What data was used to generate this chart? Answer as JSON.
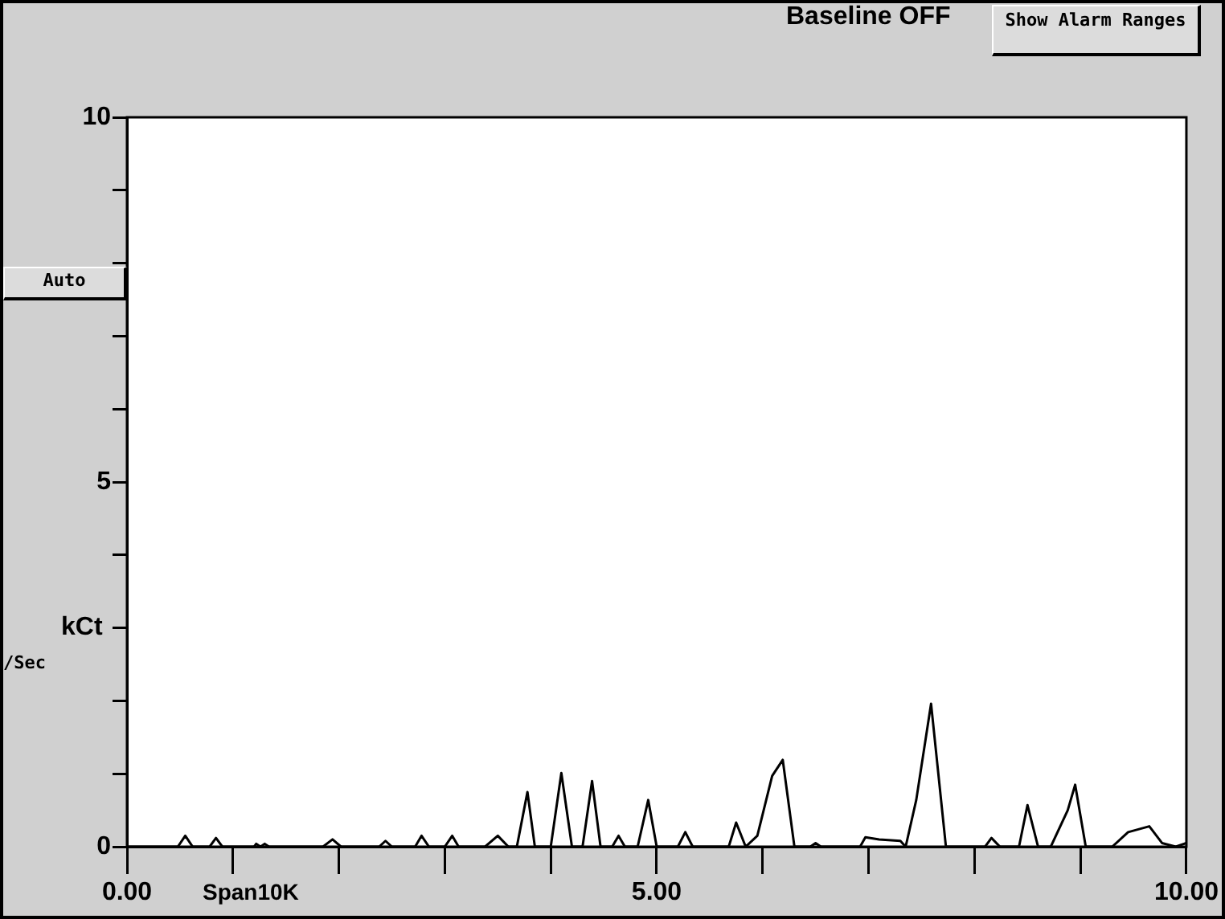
{
  "chart_data": {
    "type": "line",
    "ylabel": "kCt",
    "annotations": [
      "Baseline OFF",
      "Show Alarm Ranges",
      "Auto",
      "/Sec",
      "Span10K"
    ],
    "x": [
      0,
      0.48,
      0.55,
      0.62,
      0.78,
      0.84,
      0.9,
      1.2,
      1.22,
      1.26,
      1.3,
      1.34,
      1.85,
      1.94,
      2.02,
      2.38,
      2.44,
      2.5,
      2.72,
      2.78,
      2.85,
      3.0,
      3.07,
      3.13,
      3.38,
      3.5,
      3.6,
      3.68,
      3.78,
      3.85,
      4.0,
      4.1,
      4.2,
      4.3,
      4.39,
      4.47,
      4.58,
      4.64,
      4.7,
      4.82,
      4.92,
      5.0,
      5.2,
      5.27,
      5.34,
      5.68,
      5.75,
      5.84,
      5.95,
      6.09,
      6.19,
      6.3,
      6.45,
      6.5,
      6.55,
      6.92,
      6.97,
      7.1,
      7.3,
      7.35,
      7.45,
      7.59,
      7.73,
      8.1,
      8.16,
      8.24,
      8.42,
      8.5,
      8.6,
      8.72,
      8.88,
      8.95,
      9.05,
      9.3,
      9.45,
      9.65,
      9.77,
      9.9,
      10
    ],
    "series": [
      {
        "color": "#000000",
        "values": [
          0,
          0,
          0.15,
          0,
          0,
          0.12,
          0,
          0,
          0.04,
          0,
          0.04,
          0,
          0,
          0.1,
          0,
          0,
          0.08,
          0,
          0,
          0.15,
          0,
          0,
          0.15,
          0,
          0,
          0.15,
          0,
          0,
          0.75,
          0,
          0,
          1.01,
          0,
          0,
          0.9,
          0,
          0,
          0.15,
          0,
          0,
          0.64,
          0,
          0,
          0.2,
          0,
          0,
          0.33,
          0,
          0.15,
          0.97,
          1.19,
          0,
          0,
          0.05,
          0,
          0,
          0.13,
          0.1,
          0.08,
          0,
          0.64,
          1.96,
          0,
          0,
          0.12,
          0,
          0,
          0.57,
          0,
          0,
          0.5,
          0.85,
          0,
          0,
          0.2,
          0.28,
          0.05,
          0,
          0.05
        ]
      }
    ],
    "xlim": [
      0,
      10
    ],
    "xticks": [
      {
        "value": 0,
        "label": "0.00"
      },
      {
        "value": 1,
        "label": null
      },
      {
        "value": 2,
        "label": null
      },
      {
        "value": 3,
        "label": null
      },
      {
        "value": 4,
        "label": null
      },
      {
        "value": 5,
        "label": "5.00"
      },
      {
        "value": 6,
        "label": null
      },
      {
        "value": 7,
        "label": null
      },
      {
        "value": 8,
        "label": null
      },
      {
        "value": 9,
        "label": null
      },
      {
        "value": 10,
        "label": "10.00"
      }
    ],
    "ylim": [
      0,
      10
    ],
    "yticks": [
      0,
      {
        "value": 1,
        "label": null
      },
      {
        "value": 2,
        "label": null
      },
      {
        "value": 3,
        "label": null
      },
      {
        "value": 4,
        "label": null
      },
      5,
      {
        "value": 6,
        "label": null
      },
      {
        "value": 7,
        "label": null
      },
      {
        "value": 8,
        "label": null
      },
      {
        "value": 9,
        "label": null
      },
      10
    ],
    "marker": "none",
    "legend": false
  }
}
